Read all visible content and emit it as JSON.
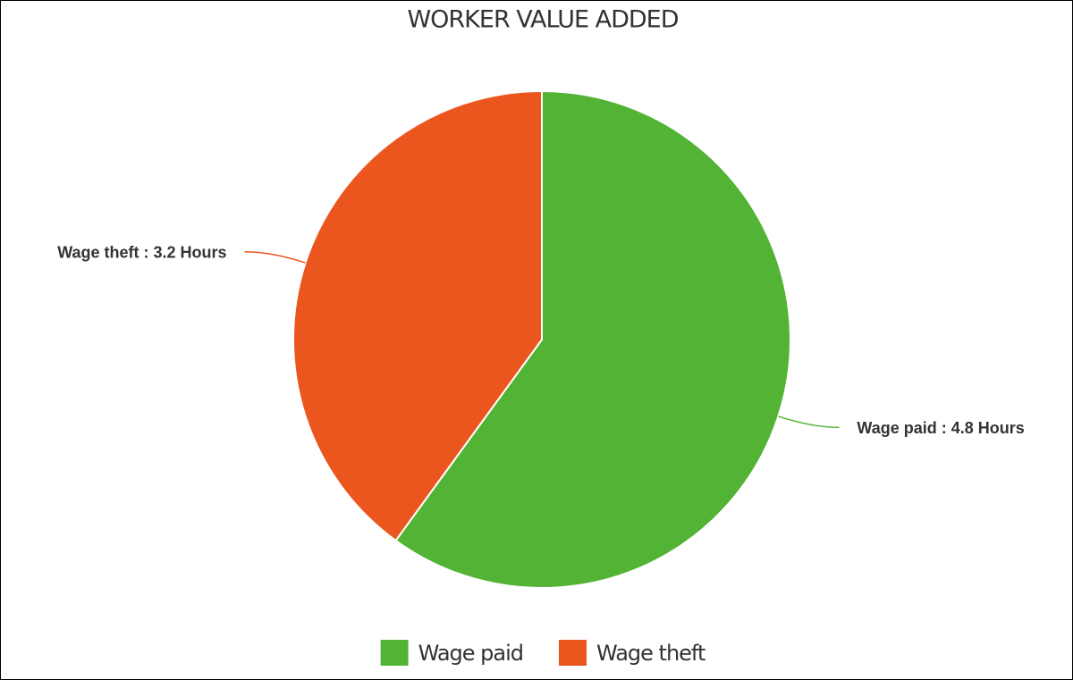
{
  "chart_data": {
    "type": "pie",
    "title": "WORKER VALUE ADDED",
    "categories": [
      "Wage paid",
      "Wage theft"
    ],
    "values": [
      4.8,
      3.2
    ],
    "value_labels": [
      "Wage paid : 4.8 Hours",
      "Wage theft : 3.2 Hours"
    ],
    "colors": [
      "#52b334",
      "#eb561f"
    ],
    "legend": "bottom"
  }
}
